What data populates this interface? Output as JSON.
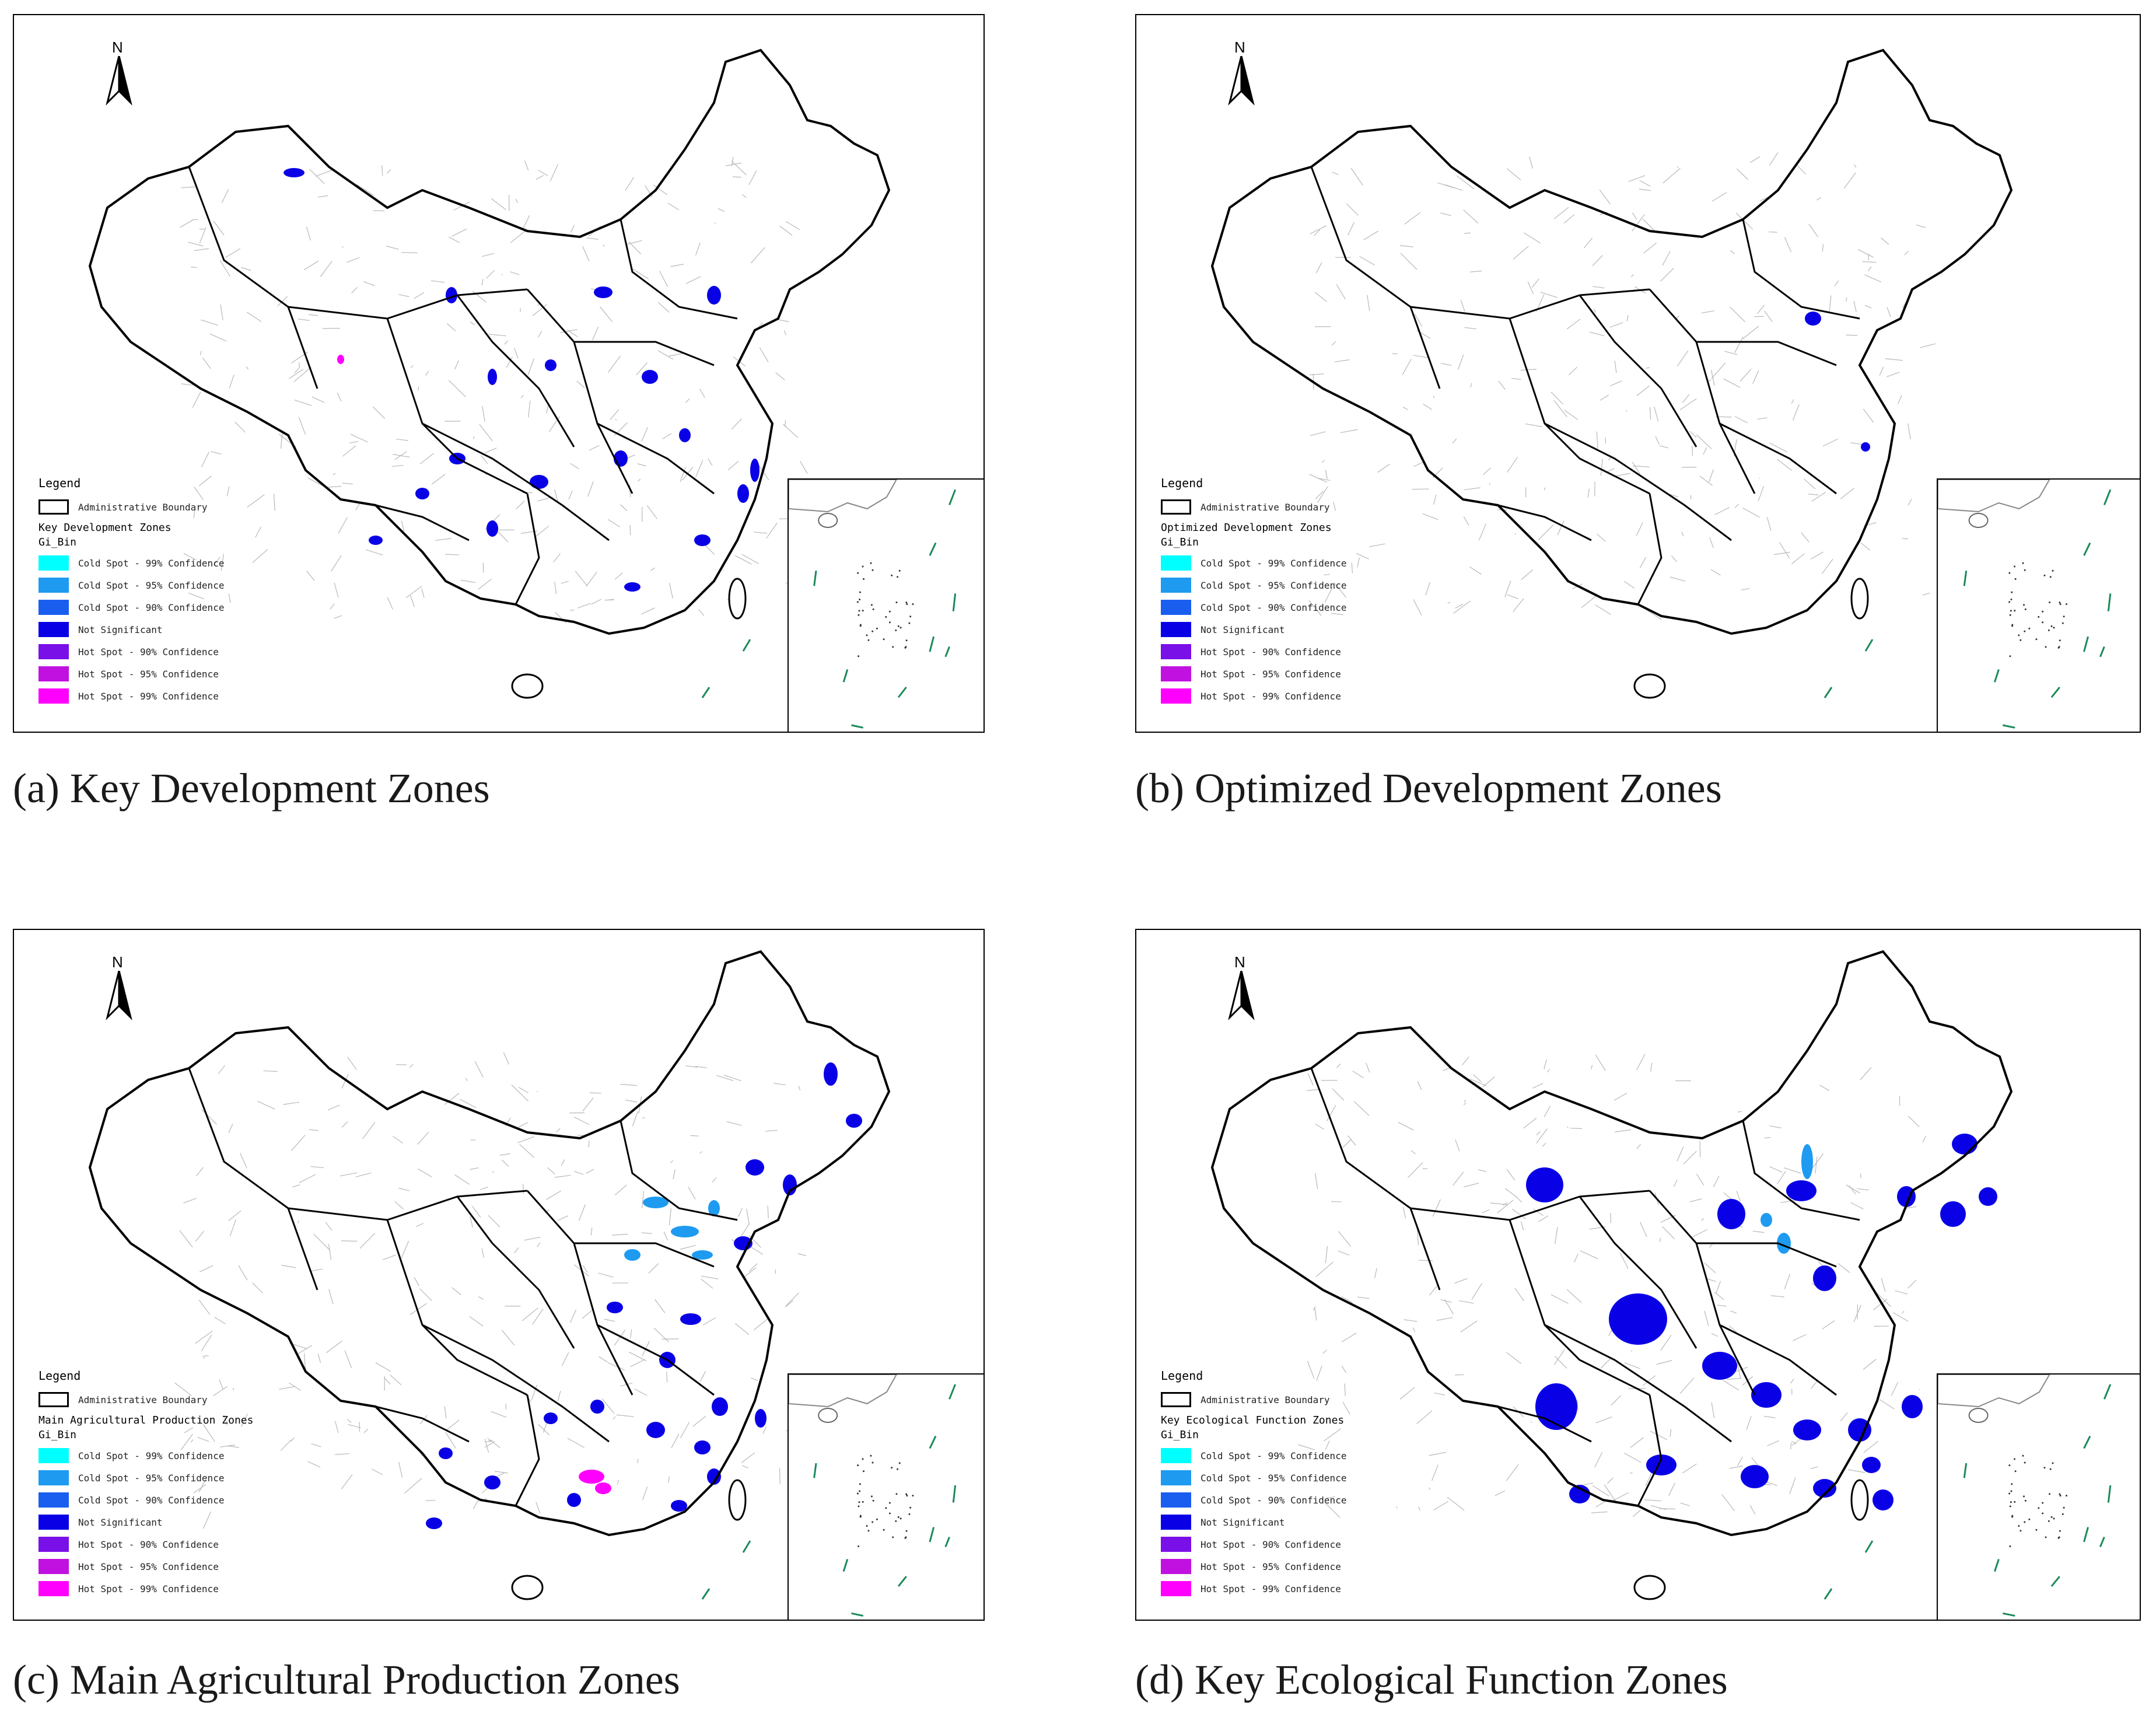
{
  "north_label": "N",
  "legend_common": {
    "title": "Legend",
    "boundary_label": "Administrative Boundary",
    "field_label": "Gi_Bin",
    "classes": [
      {
        "label": "Cold Spot - 99% Confidence",
        "color": "#00ffff"
      },
      {
        "label": "Cold Spot - 95% Confidence",
        "color": "#1e9bf0"
      },
      {
        "label": "Cold Spot - 90% Confidence",
        "color": "#1a5ef0"
      },
      {
        "label": "Not Significant",
        "color": "#0a00e6"
      },
      {
        "label": "Hot Spot - 90% Confidence",
        "color": "#7a10e8"
      },
      {
        "label": "Hot Spot - 95% Confidence",
        "color": "#c011e0"
      },
      {
        "label": "Hot Spot - 99% Confidence",
        "color": "#ff00ff"
      }
    ]
  },
  "panels": [
    {
      "zone": "Key Development Zones",
      "caption": "(a) Key Development Zones"
    },
    {
      "zone": "Optimized Development Zones",
      "caption": "(b) Optimized Development Zones"
    },
    {
      "zone": "Main Agricultural Production Zones",
      "caption": "(c) Main Agricultural Production Zones"
    },
    {
      "zone": "Key Ecological Function Zones",
      "caption": "(d) Key Ecological Function Zones"
    }
  ],
  "colors": {
    "outline": "#000000",
    "county_lines": "#b8b8b8",
    "nine_dash": "#1a8a5a"
  }
}
